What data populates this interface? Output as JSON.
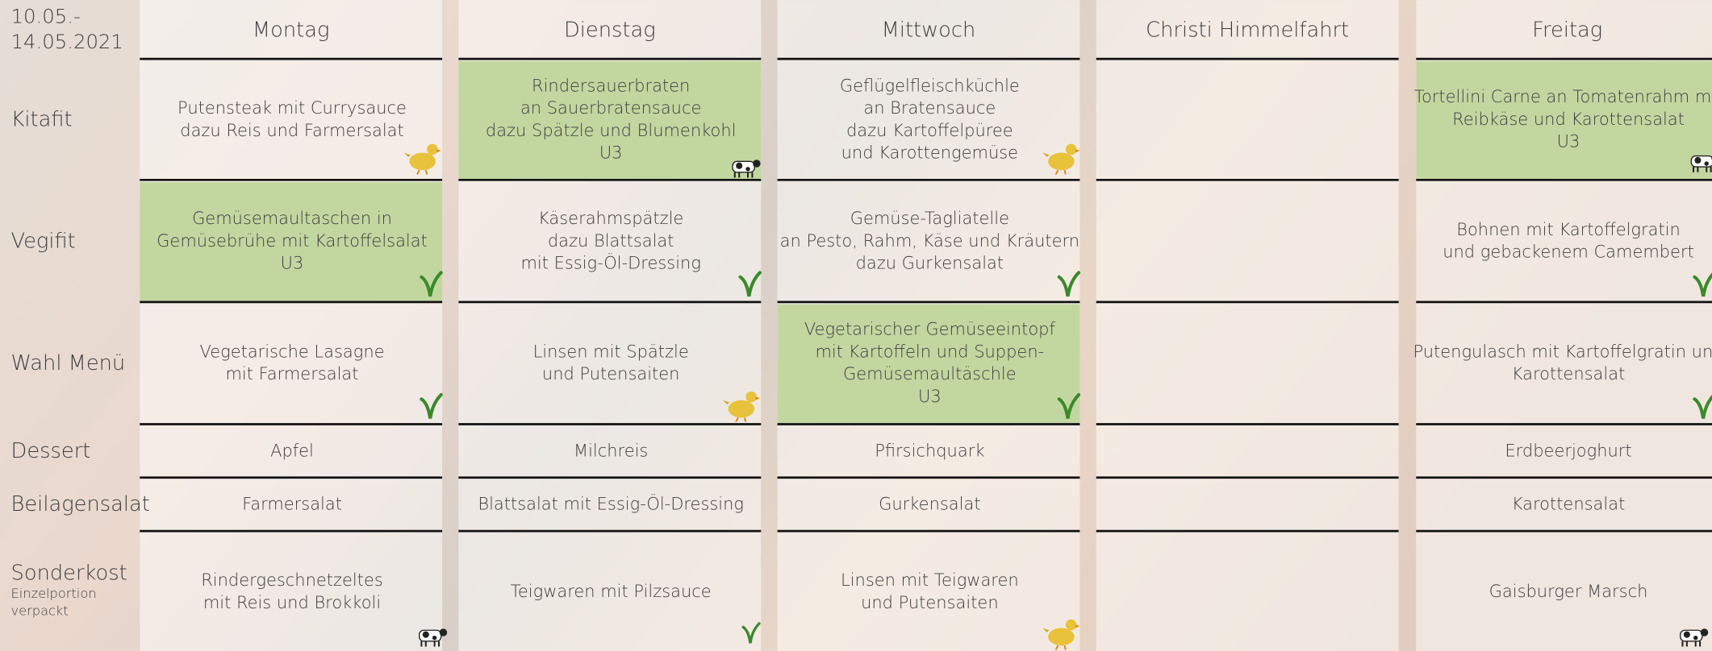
{
  "header": {
    "date": [
      "10.05.-",
      "14.05.2021"
    ],
    "days": [
      "Montag",
      "Dienstag",
      "Mittwoch",
      "Christi Himmelfahrt",
      "Freitag"
    ]
  },
  "rows": [
    {
      "label": "Kitafit",
      "cells": [
        [
          "Putensteak mit Currysauce",
          "dazu Reis und Farmersalat"
        ],
        [
          "Rindersauerbraten",
          "an Sauerbratensauce",
          "dazu Spätzle und Blumenkohl",
          "U3"
        ],
        [
          "Geflügelfleischküchle",
          "an Bratensauce",
          "dazu Kartoffelpüree",
          "und Karottengemüse"
        ],
        [],
        [
          "Tortellini Carne an Tomatenrahm mit",
          "Reibkäse und Karottensalat",
          "U3"
        ]
      ]
    },
    {
      "label": "Vegifit",
      "cells": [
        [
          "Gemüsemaultaschen in",
          "Gemüsebrühe mit Kartoffelsalat",
          "U3"
        ],
        [
          "Käserahmspätzle",
          "dazu Blattsalat",
          "mit Essig-Öl-Dressing"
        ],
        [
          "Gemüse-Tagliatelle",
          "an Pesto, Rahm, Käse und Kräutern",
          "dazu Gurkensalat"
        ],
        [],
        [
          "Bohnen mit Kartoffelgratin",
          "und gebackenem Camembert"
        ]
      ]
    },
    {
      "label": "Wahl Menü",
      "cells": [
        [
          "Vegetarische Lasagne",
          "mit Farmersalat"
        ],
        [
          "Linsen mit Spätzle",
          "und Putensaiten"
        ],
        [
          "Vegetarischer Gemüseeintopf",
          "mit Kartoffeln und Suppen-",
          "Gemüsemaultäschle",
          "U3"
        ],
        [],
        [
          "Putengulasch mit Kartoffelgratin und",
          "Karottensalat"
        ]
      ]
    },
    {
      "label": "Dessert",
      "cells": [
        [
          "Apfel"
        ],
        [
          "Milchreis"
        ],
        [
          "Pfirsichquark"
        ],
        [],
        [
          "Erdbeerjoghurt"
        ]
      ]
    },
    {
      "label": "Beilagensalat",
      "cells": [
        [
          "Farmersalat"
        ],
        [
          "Blattsalat mit Essig-Öl-Dressing"
        ],
        [
          "Gurkensalat"
        ],
        [],
        [
          "Karottensalat"
        ]
      ]
    },
    {
      "label": "Sonderkost",
      "sublabel": [
        "Einzelportion",
        "verpackt"
      ],
      "cells": [
        [
          "Rindergeschnetzeltes",
          "mit Reis und Brokkoli"
        ],
        [
          "Teigwaren mit Pilzsauce"
        ],
        [
          "Linsen mit Teigwaren",
          "und Putensaiten"
        ],
        [],
        [
          "Gaisburger Marsch"
        ]
      ]
    }
  ]
}
